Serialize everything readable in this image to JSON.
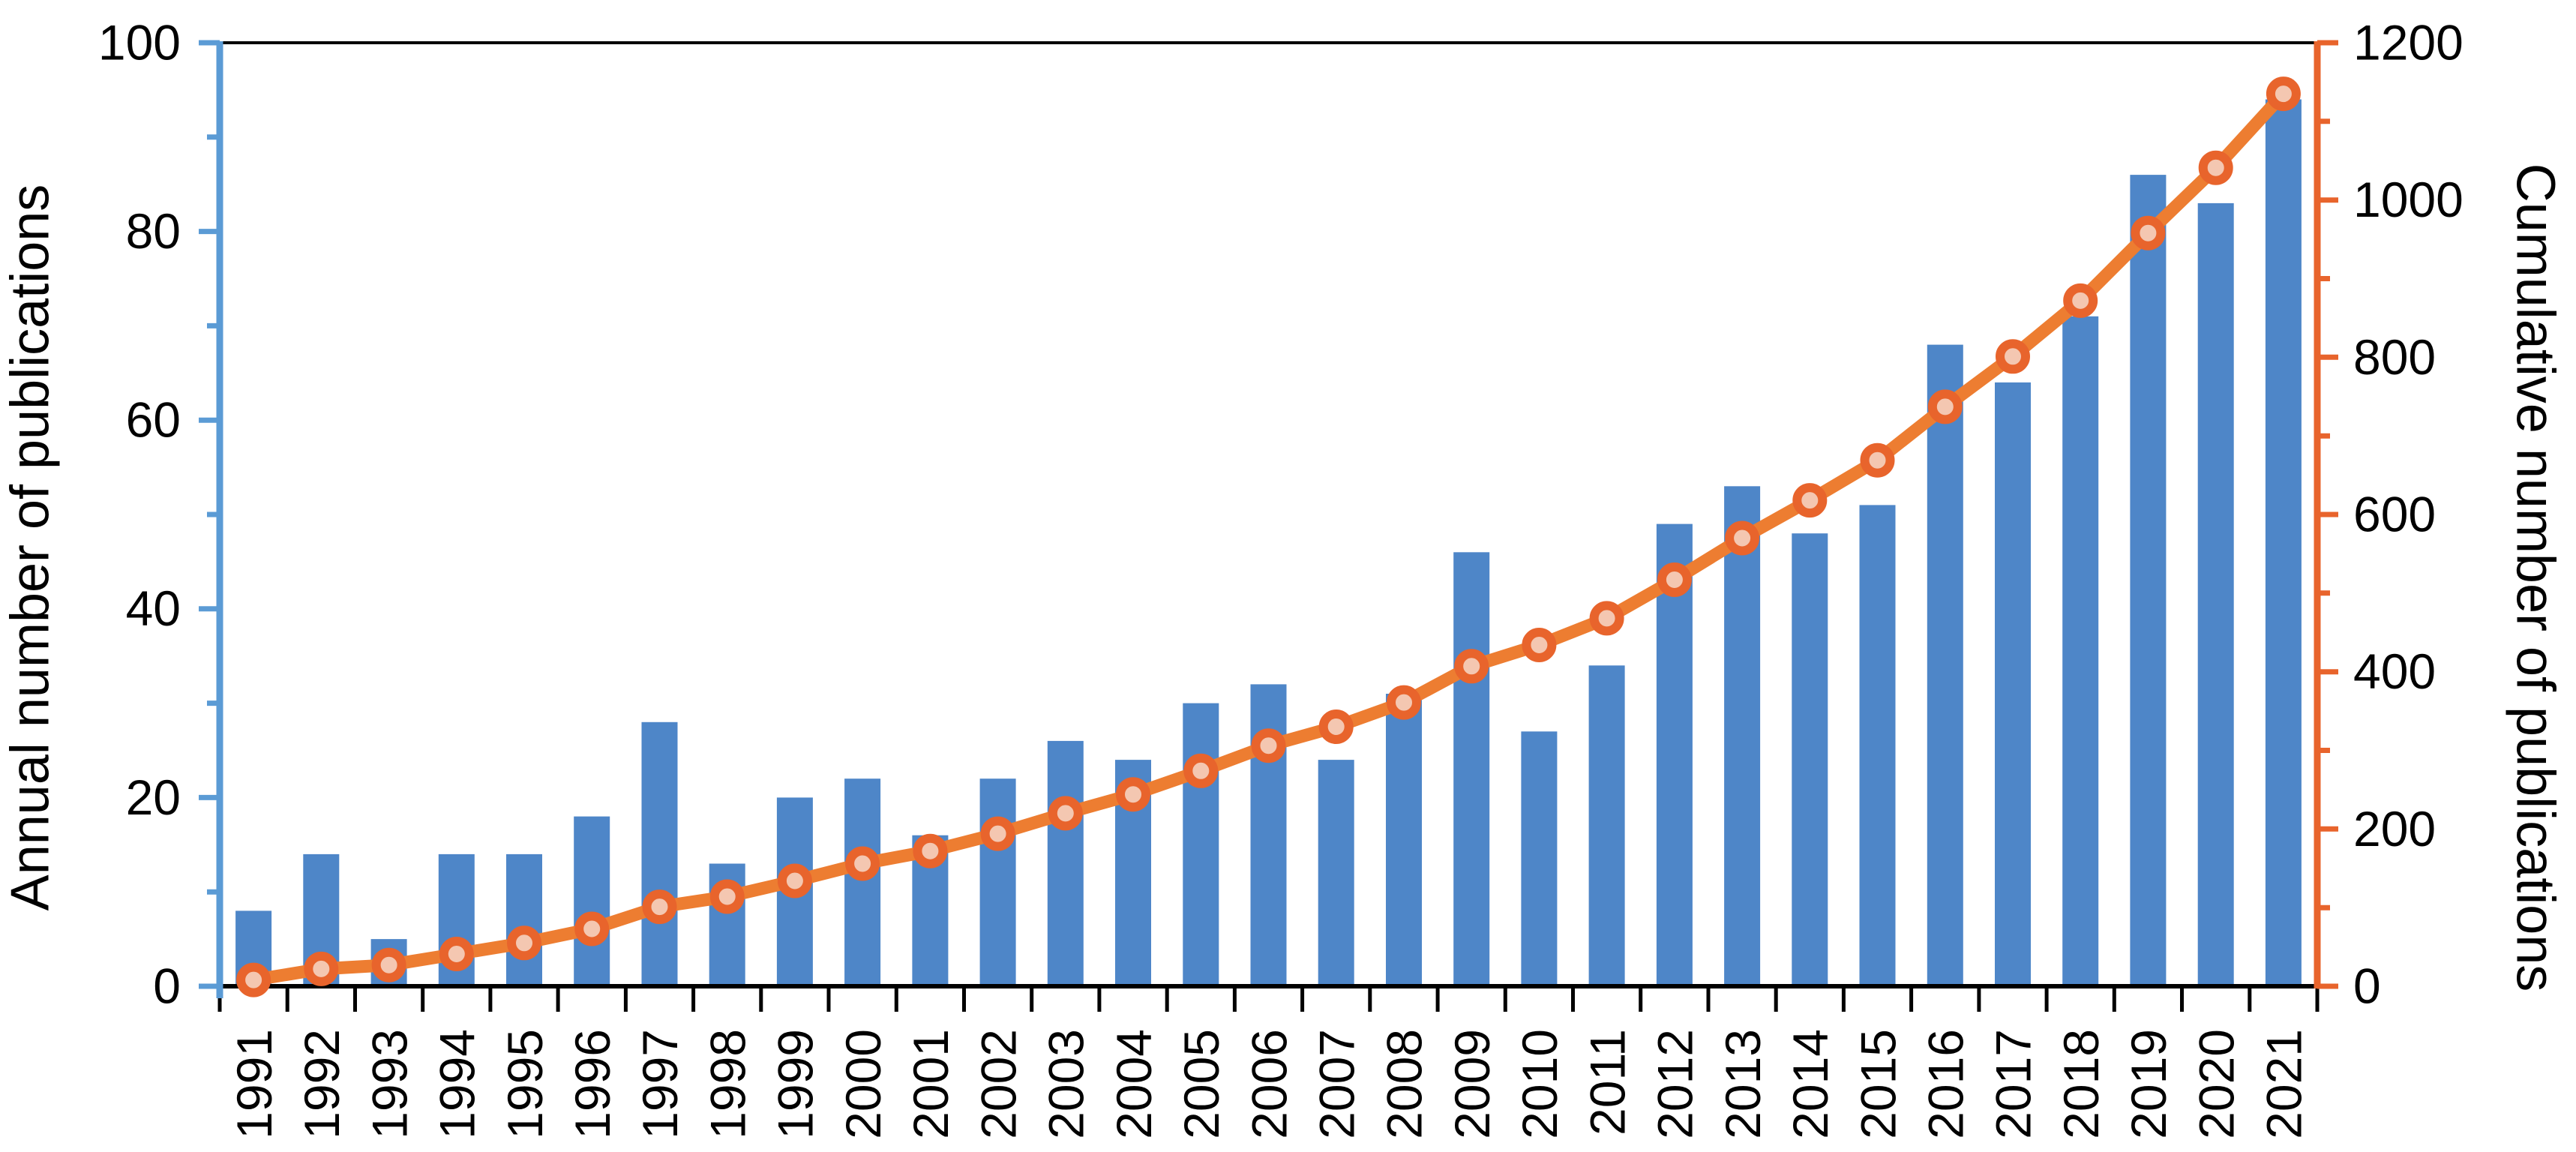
{
  "chart_data": {
    "type": "bar-line-combo",
    "title": "",
    "background": "#FFFFFF",
    "grid": false,
    "legend": false,
    "categories": [
      "1991",
      "1992",
      "1993",
      "1994",
      "1995",
      "1996",
      "1997",
      "1998",
      "1999",
      "2000",
      "2001",
      "2002",
      "2003",
      "2004",
      "2005",
      "2006",
      "2007",
      "2008",
      "2009",
      "2010",
      "2011",
      "2012",
      "2013",
      "2014",
      "2015",
      "2016",
      "2017",
      "2018",
      "2019",
      "2020",
      "2021"
    ],
    "series": [
      {
        "name": "Annual number of publications",
        "type": "bar",
        "axis": "left",
        "color": "#4E86C8",
        "values": [
          8,
          14,
          5,
          14,
          14,
          18,
          28,
          13,
          20,
          22,
          16,
          22,
          26,
          24,
          30,
          32,
          24,
          31,
          46,
          27,
          34,
          49,
          53,
          48,
          51,
          68,
          64,
          71,
          86,
          83,
          94
        ]
      },
      {
        "name": "Cumulative number of publications",
        "type": "line",
        "axis": "right",
        "color": "#ED7D31",
        "marker_fill": "#F4C7B1",
        "marker_ring": "#E8642C",
        "values": [
          8,
          22,
          27,
          41,
          55,
          73,
          101,
          114,
          134,
          156,
          172,
          194,
          220,
          244,
          274,
          306,
          330,
          361,
          407,
          434,
          468,
          517,
          570,
          618,
          669,
          737,
          801,
          872,
          958,
          1041,
          1135
        ]
      }
    ],
    "left_axis": {
      "title": "Annual number of publications",
      "min": 0,
      "max": 100,
      "major_tick_interval": 20,
      "minor_tick_interval": 10,
      "tick_labels": [
        "0",
        "20",
        "40",
        "60",
        "80",
        "100"
      ],
      "color": "#5B9BD5"
    },
    "right_axis": {
      "title": "Cumulative number of publications",
      "min": 0,
      "max": 1200,
      "major_tick_interval": 200,
      "minor_tick_interval": 100,
      "tick_labels": [
        "0",
        "200",
        "400",
        "600",
        "800",
        "1000",
        "1200"
      ],
      "color": "#E8642C"
    },
    "x_axis": {
      "color": "#000000",
      "label_rotation": -90,
      "tick_labels": [
        "1991",
        "1992",
        "1993",
        "1994",
        "1995",
        "1996",
        "1997",
        "1998",
        "1999",
        "2000",
        "2001",
        "2002",
        "2003",
        "2004",
        "2005",
        "2006",
        "2007",
        "2008",
        "2009",
        "2010",
        "2011",
        "2012",
        "2013",
        "2014",
        "2015",
        "2016",
        "2017",
        "2018",
        "2019",
        "2020",
        "2021"
      ]
    }
  }
}
